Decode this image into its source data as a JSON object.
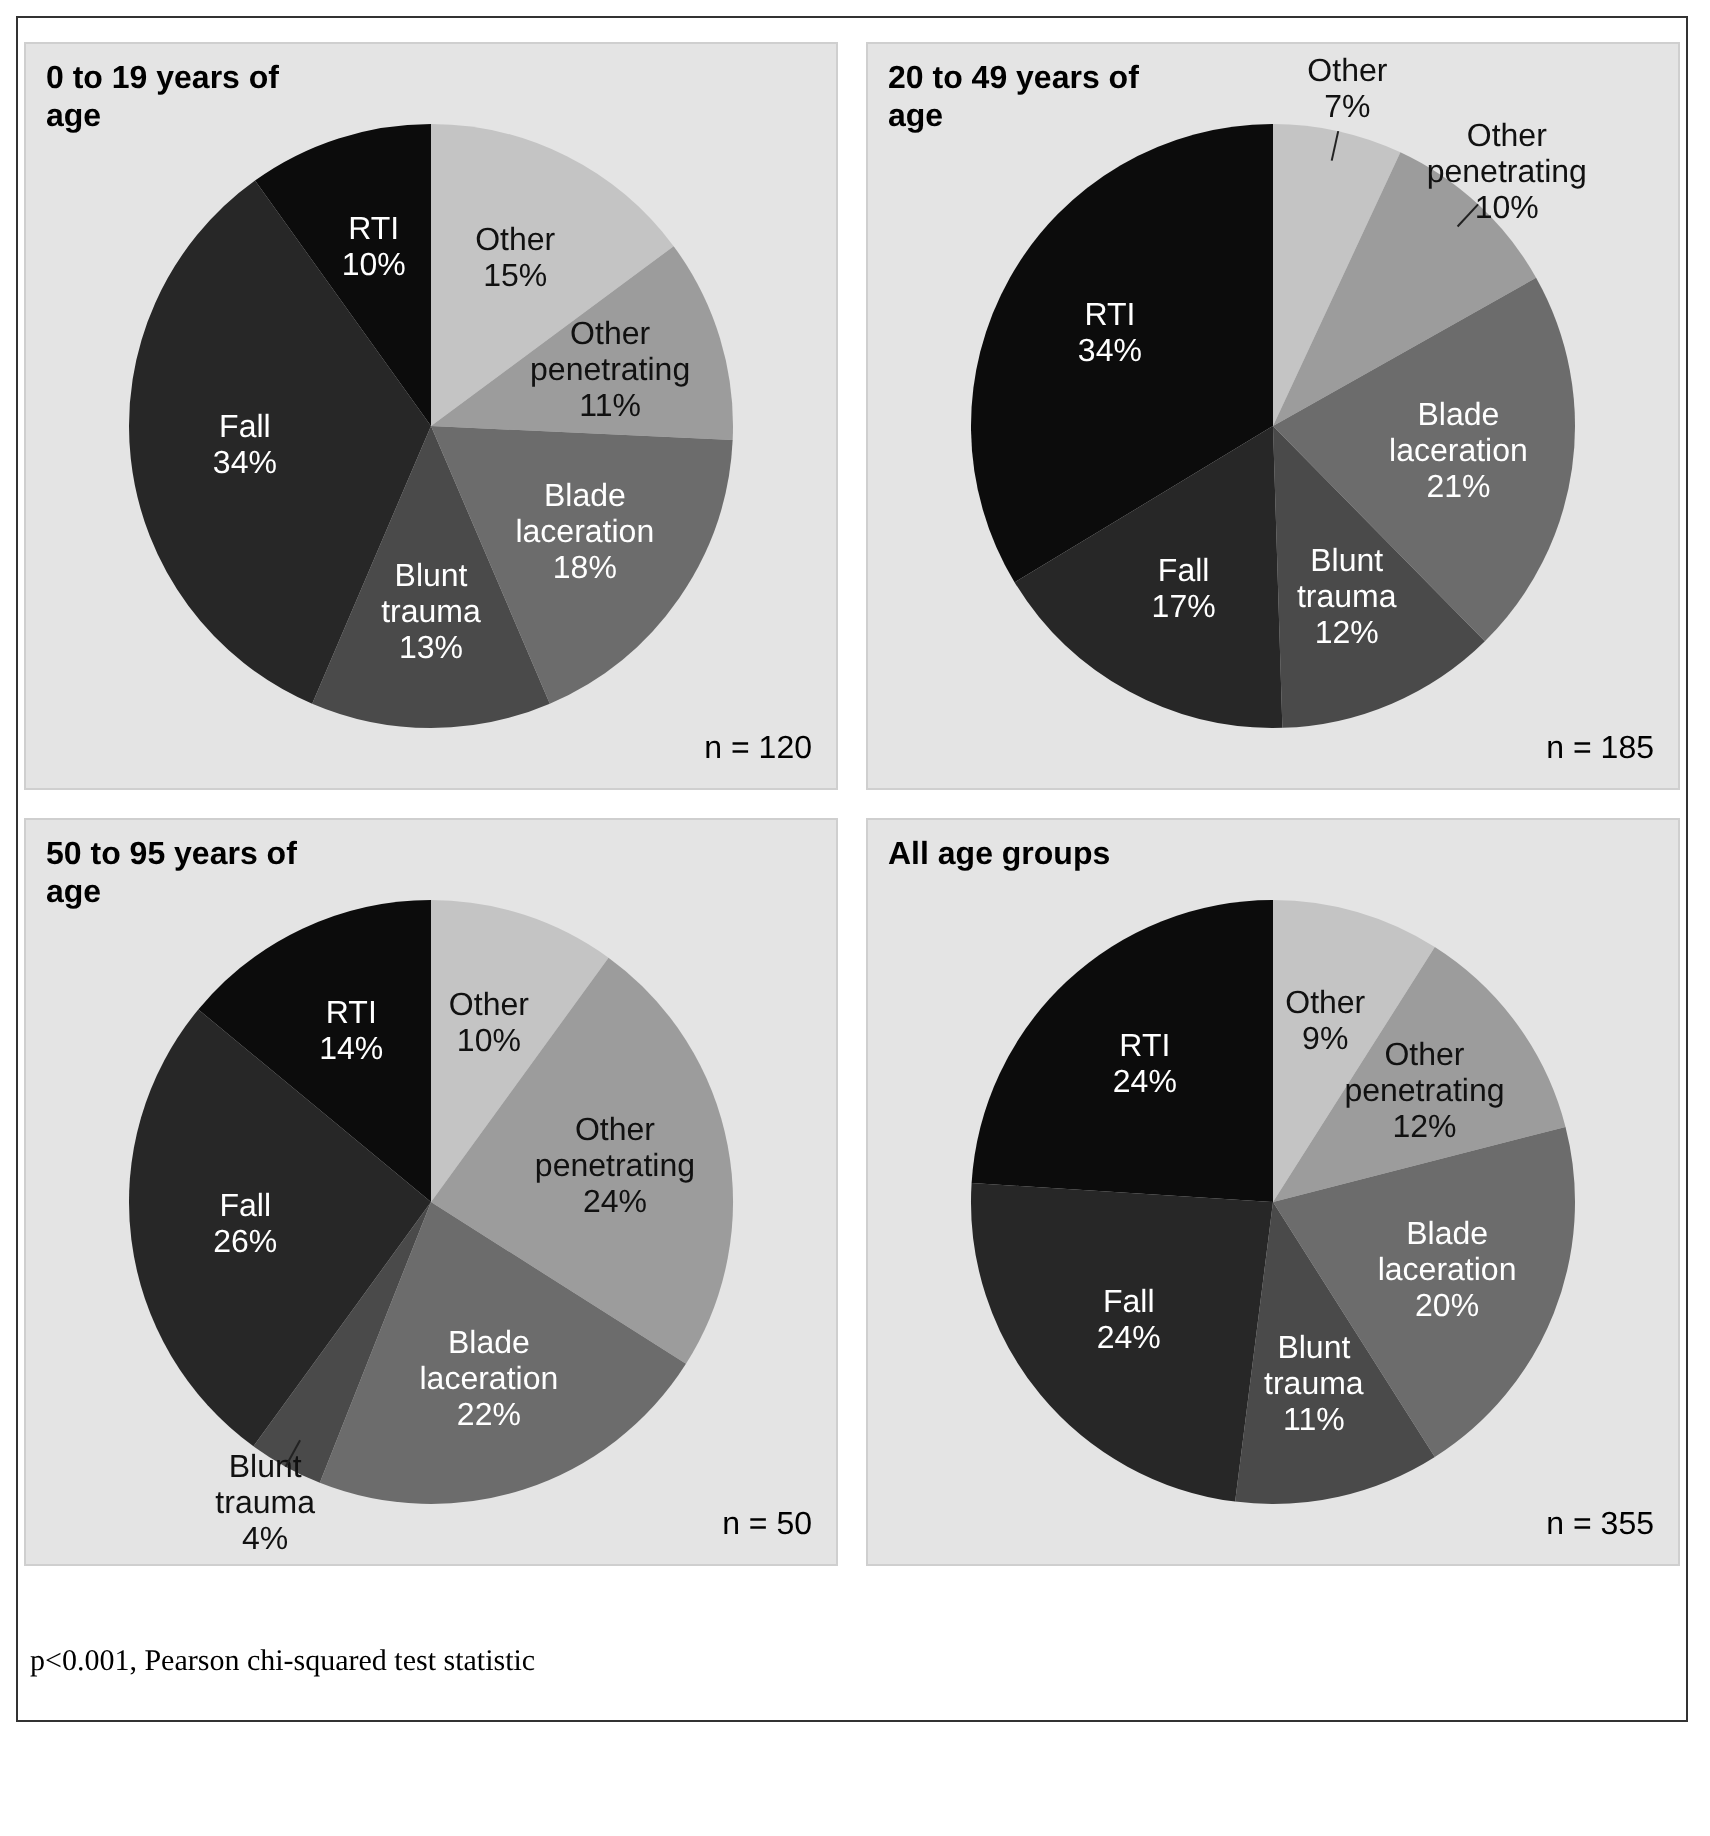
{
  "chart_data": [
    {
      "type": "pie",
      "title": "0 to 19 years of age",
      "categories": [
        "Other",
        "Other penetrating",
        "Blade laceration",
        "Blunt trauma",
        "Fall",
        "RTI"
      ],
      "values": [
        15,
        11,
        18,
        13,
        34,
        10
      ],
      "value_labels": [
        "15%",
        "11%",
        "18%",
        "13%",
        "34%",
        "10%"
      ],
      "colors": [
        "#c4c4c4",
        "#9c9c9c",
        "#6c6c6c",
        "#4a4a4a",
        "#272727",
        "#0c0c0c"
      ],
      "annotations": [
        "n = 120"
      ],
      "legend": false
    },
    {
      "type": "pie",
      "title": "20 to 49 years of age",
      "categories": [
        "Other",
        "Other penetrating",
        "Blade laceration",
        "Blunt trauma",
        "Fall",
        "RTI"
      ],
      "values": [
        7,
        10,
        21,
        12,
        17,
        34
      ],
      "value_labels": [
        "7%",
        "10%",
        "21%",
        "12%",
        "17%",
        "34%"
      ],
      "colors": [
        "#c4c4c4",
        "#9c9c9c",
        "#6c6c6c",
        "#4a4a4a",
        "#272727",
        "#0c0c0c"
      ],
      "annotations": [
        "n = 185"
      ],
      "legend": false
    },
    {
      "type": "pie",
      "title": "50 to 95 years of age",
      "categories": [
        "Other",
        "Other penetrating",
        "Blade laceration",
        "Blunt trauma",
        "Fall",
        "RTI"
      ],
      "values": [
        10,
        24,
        22,
        4,
        26,
        14
      ],
      "value_labels": [
        "10%",
        "24%",
        "22%",
        "4%",
        "26%",
        "14%"
      ],
      "colors": [
        "#c4c4c4",
        "#9c9c9c",
        "#6c6c6c",
        "#4a4a4a",
        "#272727",
        "#0c0c0c"
      ],
      "annotations": [
        "n = 50"
      ],
      "legend": false
    },
    {
      "type": "pie",
      "title": "All age groups",
      "categories": [
        "Other",
        "Other penetrating",
        "Blade laceration",
        "Blunt trauma",
        "Fall",
        "RTI"
      ],
      "values": [
        9,
        12,
        20,
        11,
        24,
        24
      ],
      "value_labels": [
        "9%",
        "12%",
        "20%",
        "11%",
        "24%",
        "24%"
      ],
      "colors": [
        "#c4c4c4",
        "#9c9c9c",
        "#6c6c6c",
        "#4a4a4a",
        "#272727",
        "#0c0c0c"
      ],
      "annotations": [
        "n = 355",
        "p<0.001, Pearson chi-squared test statistic"
      ],
      "legend": false
    }
  ]
}
